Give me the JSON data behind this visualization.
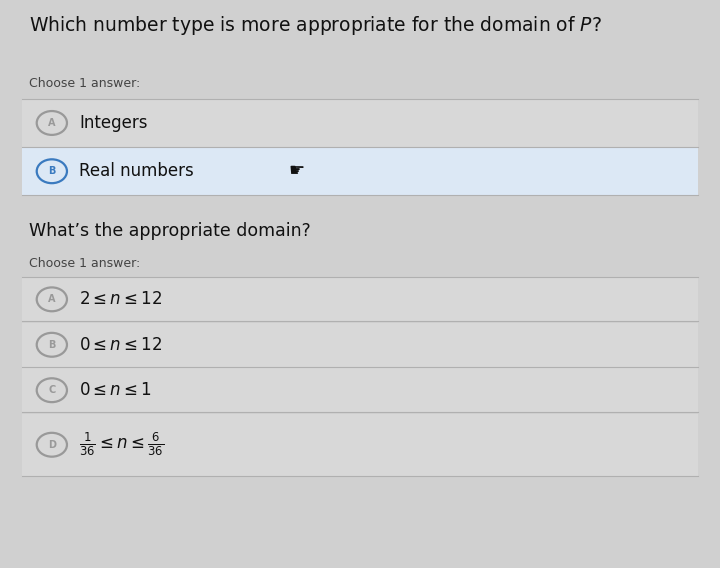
{
  "bg_color": "#d0d0d0",
  "title": "Which number type is more appropriate for the domain of $P$?",
  "title_fontsize": 13.5,
  "section1_label": "Choose 1 answer:",
  "section1_options": [
    {
      "letter": "A",
      "text": "Integers",
      "selected": false
    },
    {
      "letter": "B",
      "text": "Real numbers",
      "selected": true
    }
  ],
  "section2_title": "What’s the appropriate domain?",
  "section2_label": "Choose 1 answer:",
  "section2_options": [
    {
      "letter": "A",
      "text": "$2 \\leq n \\leq 12$",
      "selected": false
    },
    {
      "letter": "B",
      "text": "$0 \\leq n \\leq 12$",
      "selected": false
    },
    {
      "letter": "C",
      "text": "$0 \\leq n \\leq 1$",
      "selected": false
    },
    {
      "letter": "D",
      "text": "$\\frac{1}{36} \\leq n \\leq \\frac{6}{36}$",
      "selected": false
    }
  ],
  "selected_color": "#3a7abf",
  "unselected_color": "#999999",
  "option_bg_selected": "#dce8f5",
  "option_bg_unselected": "#d8d8d8",
  "divider_color": "#b0b0b0",
  "text_color": "#111111",
  "label_color": "#444444"
}
